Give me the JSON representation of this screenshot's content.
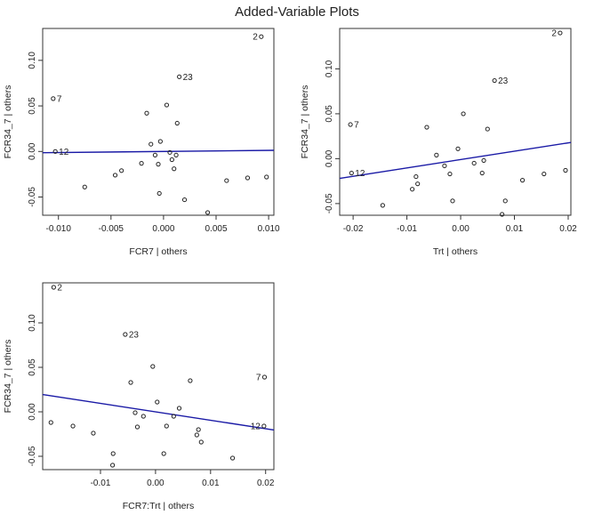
{
  "title": "Added-Variable Plots",
  "colors": {
    "line": "#1a1aa6",
    "point": "#222222",
    "axis": "#333333",
    "background": "#ffffff"
  },
  "chart_data": [
    {
      "type": "scatter",
      "xlabel": "FCR7 | others",
      "ylabel": "FCR34_7 | others",
      "xlim": [
        -0.0115,
        0.0105
      ],
      "ylim": [
        -0.07,
        0.135
      ],
      "xticks": [
        -0.01,
        -0.005,
        0.0,
        0.005,
        0.01
      ],
      "xtick_labels": [
        "-0.010",
        "-0.005",
        "0.000",
        "0.005",
        "0.010"
      ],
      "yticks": [
        -0.05,
        0.0,
        0.05,
        0.1
      ],
      "ytick_labels": [
        "-0.05",
        "0.00",
        "0.05",
        "0.10"
      ],
      "grid": false,
      "fit_line": {
        "intercept": 0.0,
        "slope": 0.12
      },
      "points": [
        {
          "x": 0.0093,
          "y": 0.126,
          "label": "2"
        },
        {
          "x": 0.0015,
          "y": 0.082,
          "label": "23"
        },
        {
          "x": -0.0105,
          "y": 0.058,
          "label": "7"
        },
        {
          "x": -0.0103,
          "y": 0.0,
          "label": "12"
        },
        {
          "x": -0.0075,
          "y": -0.039
        },
        {
          "x": -0.0046,
          "y": -0.026
        },
        {
          "x": -0.004,
          "y": -0.021
        },
        {
          "x": -0.0021,
          "y": -0.013
        },
        {
          "x": -0.0016,
          "y": 0.042
        },
        {
          "x": -0.0012,
          "y": 0.008
        },
        {
          "x": -0.0008,
          "y": -0.004
        },
        {
          "x": -0.0005,
          "y": -0.014
        },
        {
          "x": -0.0004,
          "y": -0.046
        },
        {
          "x": -0.0003,
          "y": 0.011
        },
        {
          "x": 0.0003,
          "y": 0.051
        },
        {
          "x": 0.0006,
          "y": -0.001
        },
        {
          "x": 0.0008,
          "y": -0.009
        },
        {
          "x": 0.001,
          "y": -0.019
        },
        {
          "x": 0.0012,
          "y": -0.004
        },
        {
          "x": 0.0013,
          "y": 0.031
        },
        {
          "x": 0.002,
          "y": -0.053
        },
        {
          "x": 0.0042,
          "y": -0.067
        },
        {
          "x": 0.006,
          "y": -0.032
        },
        {
          "x": 0.008,
          "y": -0.029
        },
        {
          "x": 0.0098,
          "y": -0.028
        }
      ]
    },
    {
      "type": "scatter",
      "xlabel": "Trt | others",
      "ylabel": "FCR34_7 | others",
      "xlim": [
        -0.0225,
        0.0205
      ],
      "ylim": [
        -0.063,
        0.145
      ],
      "xticks": [
        -0.02,
        -0.01,
        0.0,
        0.01,
        0.02
      ],
      "xtick_labels": [
        "-0.02",
        "-0.01",
        "0.00",
        "0.01",
        "0.02"
      ],
      "yticks": [
        0.0,
        0.05,
        0.1
      ],
      "ytick_labels": [
        "0.00",
        "0.05",
        "0.10"
      ],
      "extra_y_label": "-0.05",
      "extra_y_value": -0.05,
      "grid": false,
      "fit_line": {
        "intercept": -0.001,
        "slope": 0.93
      },
      "points": [
        {
          "x": 0.0185,
          "y": 0.14,
          "label": "2"
        },
        {
          "x": 0.0063,
          "y": 0.087,
          "label": "23"
        },
        {
          "x": -0.0205,
          "y": 0.038,
          "label": "7"
        },
        {
          "x": -0.0203,
          "y": -0.016,
          "label": "12"
        },
        {
          "x": -0.0145,
          "y": -0.052
        },
        {
          "x": -0.009,
          "y": -0.034
        },
        {
          "x": -0.0083,
          "y": -0.02
        },
        {
          "x": -0.008,
          "y": -0.028
        },
        {
          "x": -0.0063,
          "y": 0.035
        },
        {
          "x": -0.0045,
          "y": 0.004
        },
        {
          "x": -0.003,
          "y": -0.008
        },
        {
          "x": -0.002,
          "y": -0.017
        },
        {
          "x": -0.0015,
          "y": -0.047
        },
        {
          "x": -0.0005,
          "y": 0.011
        },
        {
          "x": 0.0005,
          "y": 0.05
        },
        {
          "x": 0.0025,
          "y": -0.005
        },
        {
          "x": 0.004,
          "y": -0.016
        },
        {
          "x": 0.0043,
          "y": -0.002
        },
        {
          "x": 0.005,
          "y": 0.033
        },
        {
          "x": 0.0077,
          "y": -0.062
        },
        {
          "x": 0.0083,
          "y": -0.047
        },
        {
          "x": 0.0115,
          "y": -0.024
        },
        {
          "x": 0.0155,
          "y": -0.017
        },
        {
          "x": 0.0195,
          "y": -0.013
        }
      ]
    },
    {
      "type": "scatter",
      "xlabel": "FCR7:Trt | others",
      "ylabel": "FCR34_7 | others",
      "xlim": [
        -0.0205,
        0.0215
      ],
      "ylim": [
        -0.065,
        0.145
      ],
      "xticks": [
        -0.01,
        0.0,
        0.01,
        0.02
      ],
      "xtick_labels": [
        "-0.01",
        "0.00",
        "0.01",
        "0.02"
      ],
      "yticks": [
        -0.05,
        0.0,
        0.05,
        0.1
      ],
      "ytick_labels": [
        "-0.05",
        "0.00",
        "0.05",
        "0.10"
      ],
      "grid": false,
      "fit_line": {
        "intercept": 0.0,
        "slope": -0.95
      },
      "points": [
        {
          "x": -0.0185,
          "y": 0.14,
          "label": "2"
        },
        {
          "x": -0.0055,
          "y": 0.087,
          "label": "23"
        },
        {
          "x": 0.0198,
          "y": 0.039,
          "label": "7"
        },
        {
          "x": 0.0197,
          "y": -0.016,
          "label": "12"
        },
        {
          "x": -0.019,
          "y": -0.012
        },
        {
          "x": -0.015,
          "y": -0.016
        },
        {
          "x": -0.0113,
          "y": -0.024
        },
        {
          "x": -0.0077,
          "y": -0.047
        },
        {
          "x": -0.0078,
          "y": -0.06
        },
        {
          "x": -0.0045,
          "y": 0.033
        },
        {
          "x": -0.0037,
          "y": -0.001
        },
        {
          "x": -0.0033,
          "y": -0.017
        },
        {
          "x": -0.0022,
          "y": -0.005
        },
        {
          "x": -0.0005,
          "y": 0.051
        },
        {
          "x": 0.0003,
          "y": 0.011
        },
        {
          "x": 0.0015,
          "y": -0.047
        },
        {
          "x": 0.002,
          "y": -0.016
        },
        {
          "x": 0.0033,
          "y": -0.005
        },
        {
          "x": 0.0043,
          "y": 0.004
        },
        {
          "x": 0.0063,
          "y": 0.035
        },
        {
          "x": 0.0075,
          "y": -0.026
        },
        {
          "x": 0.0078,
          "y": -0.02
        },
        {
          "x": 0.0083,
          "y": -0.034
        },
        {
          "x": 0.014,
          "y": -0.052
        }
      ]
    }
  ]
}
